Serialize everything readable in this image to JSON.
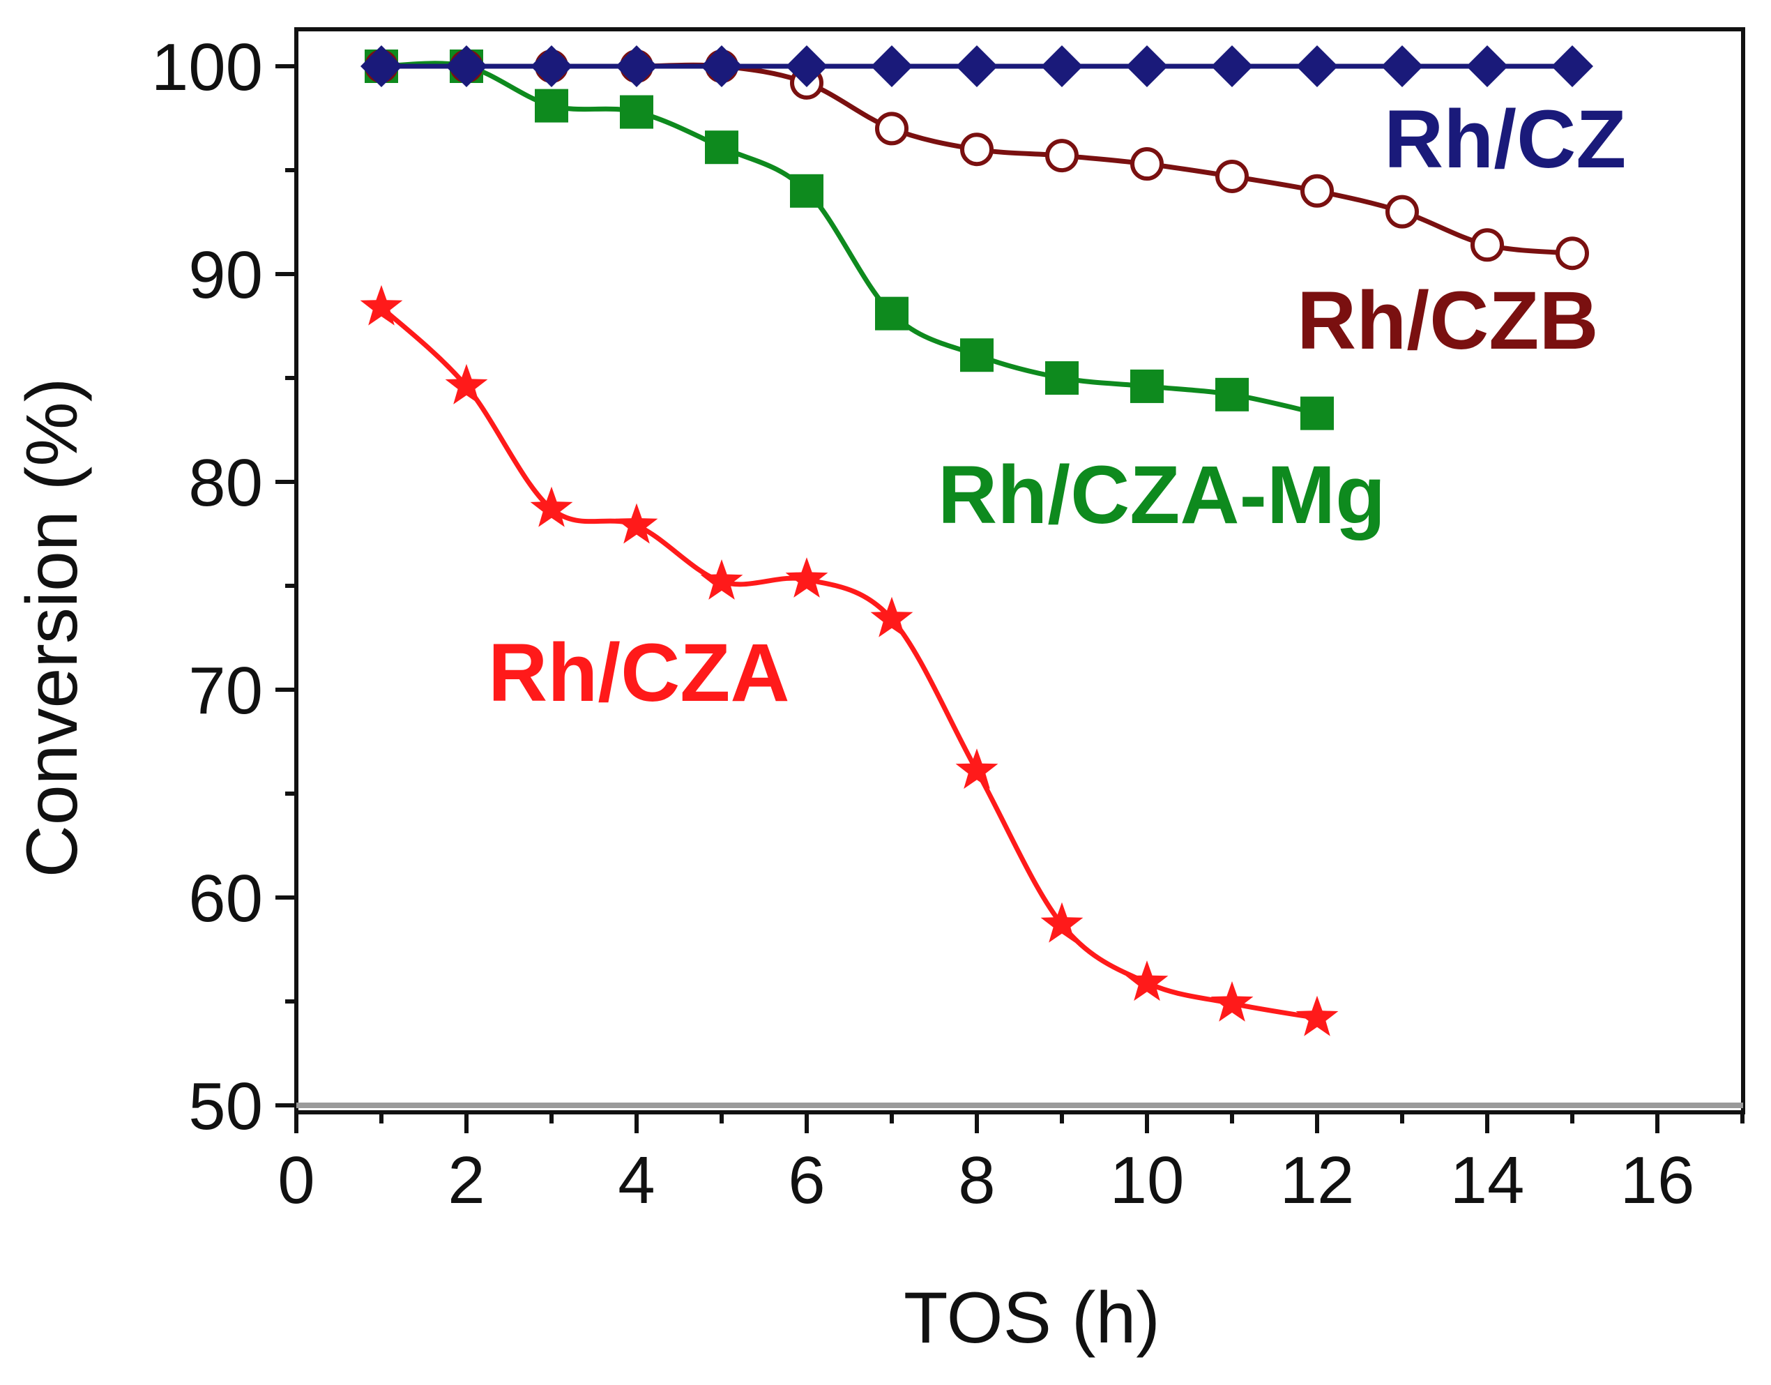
{
  "chart_data": {
    "type": "line",
    "title": "",
    "xlabel": "TOS (h)",
    "ylabel": "Conversion (%)",
    "xlim": [
      0,
      17
    ],
    "ylim": [
      50,
      102
    ],
    "xticks": [
      0,
      2,
      4,
      6,
      8,
      10,
      12,
      14,
      16
    ],
    "yticks": [
      50,
      60,
      70,
      80,
      90,
      100
    ],
    "grid": false,
    "legend": "inline labels",
    "series": [
      {
        "name": "Rh/CZ",
        "color": "#1a1a7a",
        "marker": "diamond",
        "x": [
          1,
          2,
          3,
          4,
          5,
          6,
          7,
          8,
          9,
          10,
          11,
          12,
          13,
          14,
          15
        ],
        "values": [
          100,
          100,
          100,
          100,
          100,
          100,
          100,
          100,
          100,
          100,
          100,
          100,
          100,
          100,
          100
        ]
      },
      {
        "name": "Rh/CZB",
        "color": "#7a1010",
        "marker": "open-circle",
        "x": [
          1,
          2,
          3,
          4,
          5,
          6,
          7,
          8,
          9,
          10,
          11,
          12,
          13,
          14,
          15
        ],
        "values": [
          100,
          100,
          100,
          100,
          100,
          99.2,
          97,
          96,
          95.7,
          95.3,
          94.7,
          94,
          93,
          91.4,
          91
        ]
      },
      {
        "name": "Rh/CZA-Mg",
        "color": "#0e8a1e",
        "marker": "square",
        "x": [
          1,
          2,
          3,
          4,
          5,
          6,
          7,
          8,
          9,
          10,
          11,
          12
        ],
        "values": [
          100,
          100,
          98.1,
          97.8,
          96.1,
          94,
          88.1,
          86.1,
          85,
          84.6,
          84.2,
          83.3
        ]
      },
      {
        "name": "Rh/CZA",
        "color": "#ff1a1a",
        "marker": "star",
        "x": [
          1,
          2,
          3,
          4,
          5,
          6,
          7,
          8,
          9,
          10,
          11,
          12
        ],
        "values": [
          88.4,
          84.6,
          78.7,
          77.9,
          75.2,
          75.3,
          73.4,
          66.1,
          58.7,
          55.9,
          54.9,
          54.2
        ]
      }
    ]
  }
}
